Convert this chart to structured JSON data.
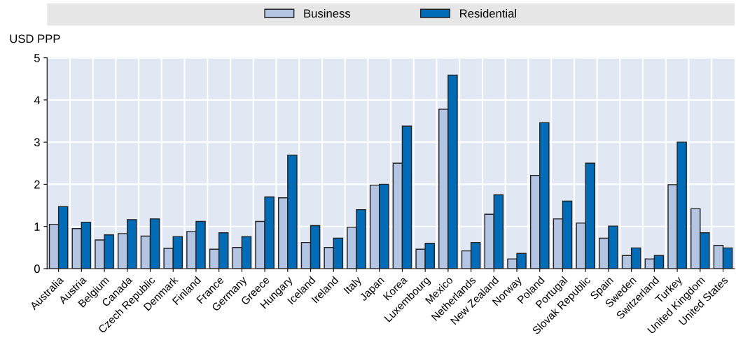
{
  "chart_data": {
    "type": "bar",
    "ylabel": "USD PPP",
    "categories": [
      "Australia",
      "Austria",
      "Belgium",
      "Canada",
      "Czech Republic",
      "Denmark",
      "Finland",
      "France",
      "Germany",
      "Greece",
      "Hungary",
      "Iceland",
      "Ireland",
      "Italy",
      "Japan",
      "Korea",
      "Luxembourg",
      "Mexico",
      "Netherlands",
      "New Zealand",
      "Norway",
      "Poland",
      "Portugal",
      "Slovak Republic",
      "Spain",
      "Sweden",
      "Switzerland",
      "Turkey",
      "United Kingdom",
      "United States"
    ],
    "series": [
      {
        "name": "Business",
        "color": "#b3c5e3",
        "values": [
          1.05,
          0.95,
          0.68,
          0.83,
          0.77,
          0.48,
          0.88,
          0.46,
          0.5,
          1.12,
          1.68,
          0.62,
          0.5,
          0.98,
          1.98,
          2.5,
          0.46,
          3.78,
          0.42,
          1.29,
          0.23,
          2.21,
          1.18,
          1.08,
          0.72,
          0.31,
          0.23,
          1.99,
          1.42,
          0.55
        ]
      },
      {
        "name": "Residential",
        "color": "#006bb6",
        "values": [
          1.47,
          1.1,
          0.8,
          1.16,
          1.18,
          0.76,
          1.12,
          0.85,
          0.76,
          1.7,
          2.69,
          1.02,
          0.72,
          1.4,
          2.0,
          3.38,
          0.6,
          4.59,
          0.62,
          1.75,
          0.36,
          3.46,
          1.6,
          2.5,
          1.01,
          0.49,
          0.31,
          3.0,
          0.85,
          0.49
        ]
      }
    ],
    "ylim": [
      0,
      5
    ],
    "yticks": [
      0,
      1,
      2,
      3,
      4,
      5
    ],
    "grid": true,
    "legend": "top"
  }
}
